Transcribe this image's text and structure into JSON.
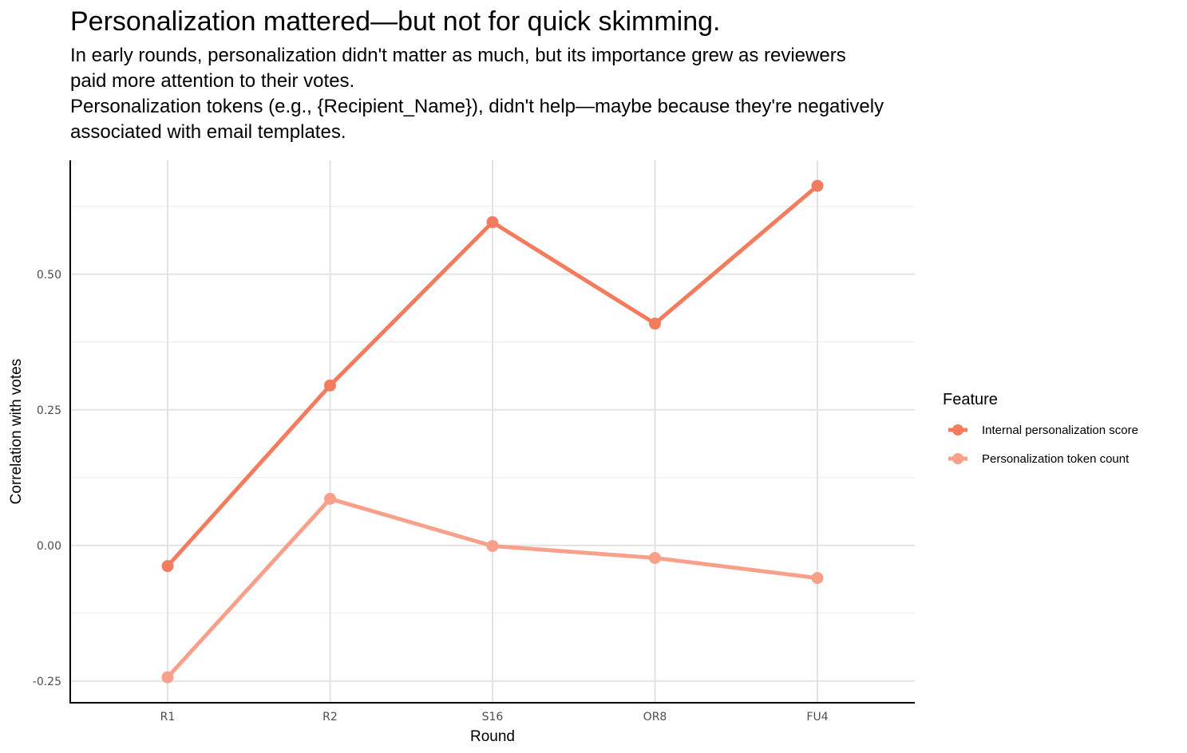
{
  "header": {
    "title": "Personalization mattered—but not for quick skimming.",
    "subtitle_lines": [
      "In early rounds, personalization didn't matter as much, but its importance grew as reviewers",
      "paid more attention to their votes.",
      "Personalization tokens (e.g., {Recipient_Name}), didn't help—maybe because they're negatively",
      "associated with email templates."
    ]
  },
  "chart_data": {
    "type": "line",
    "title": "Personalization mattered—but not for quick skimming.",
    "xlabel": "Round",
    "ylabel": "Correlation with votes",
    "categories": [
      "R1",
      "R2",
      "S16",
      "OR8",
      "FU4"
    ],
    "ylim": [
      -0.29,
      0.71
    ],
    "y_ticks": [
      -0.25,
      0.0,
      0.25,
      0.5
    ],
    "y_tick_labels": [
      "-0.25",
      "0.00",
      "0.25",
      "0.50"
    ],
    "grid": true,
    "legend_title": "Feature",
    "legend_position": "right",
    "series": [
      {
        "name": "Internal personalization score",
        "color": "#F47C5E",
        "values": [
          -0.038,
          0.295,
          0.596,
          0.409,
          0.663
        ]
      },
      {
        "name": "Personalization token count",
        "color": "#F9A08B",
        "values": [
          -0.243,
          0.086,
          -0.001,
          -0.023,
          -0.06
        ]
      }
    ]
  }
}
